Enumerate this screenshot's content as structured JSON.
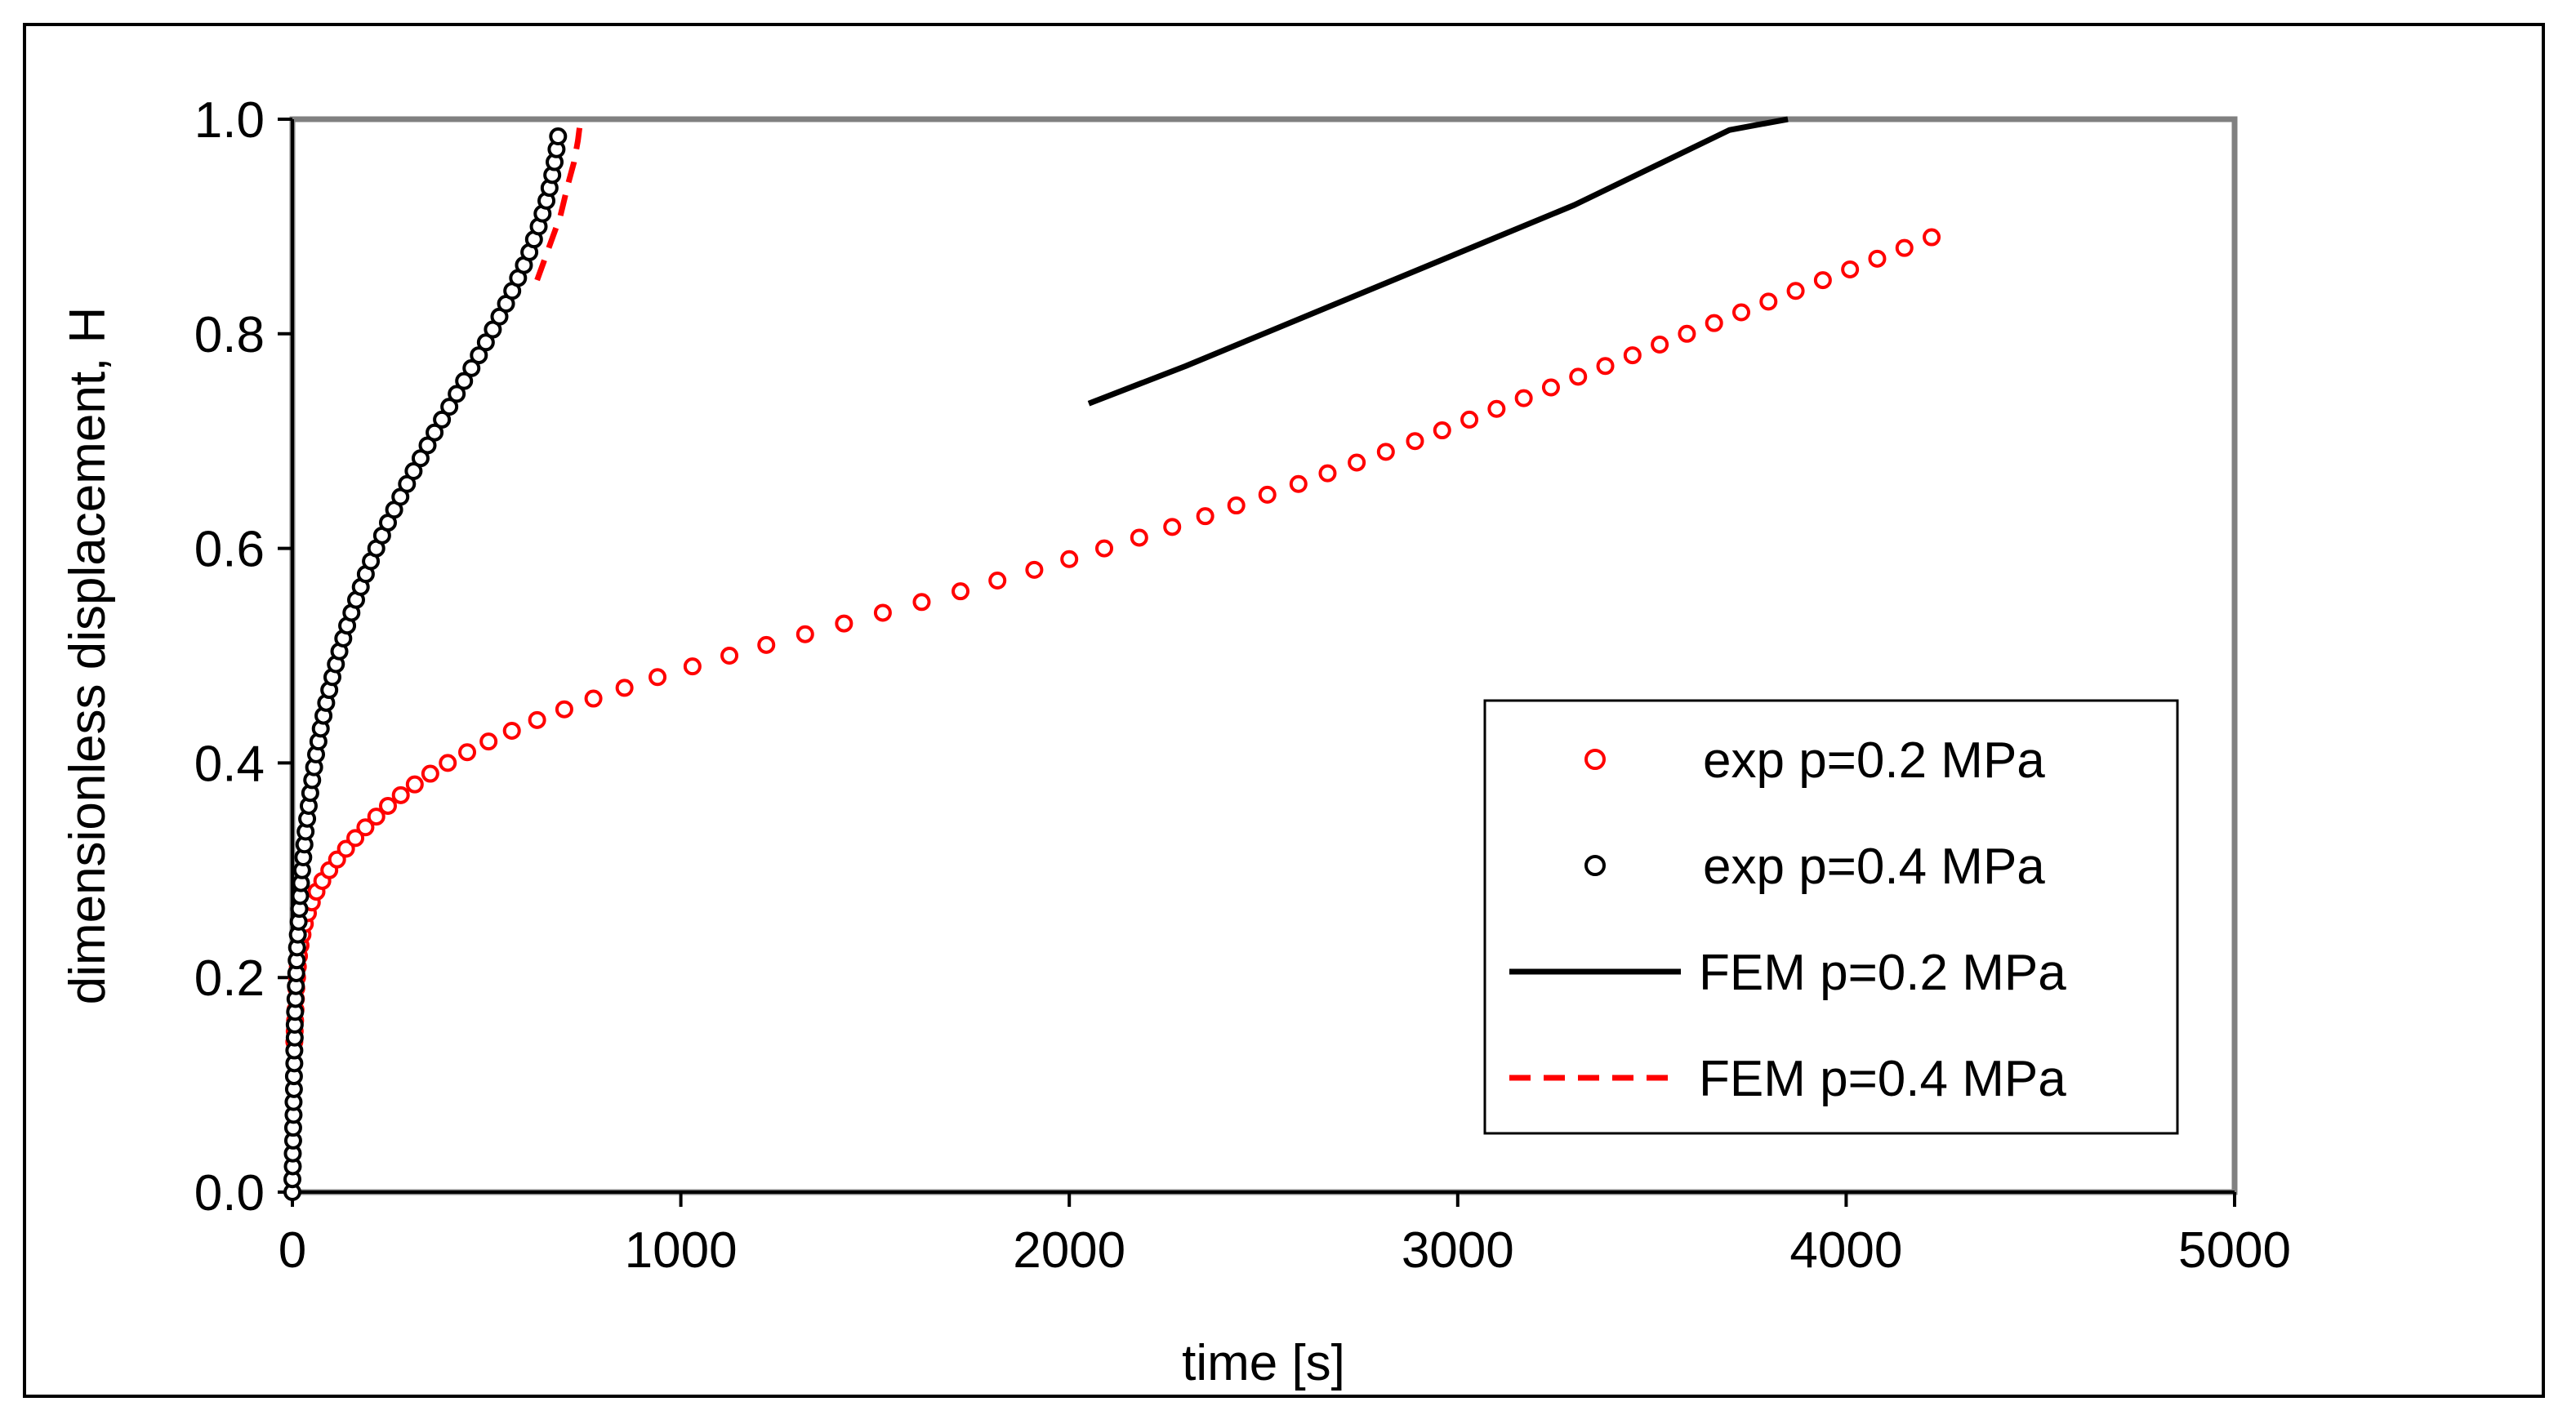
{
  "chart_data": {
    "type": "scatter",
    "title": "",
    "xlabel": "time [s]",
    "ylabel": "dimensionless displacement, H",
    "xlim": [
      0,
      5000
    ],
    "ylim": [
      0,
      1
    ],
    "xticks": [
      {
        "value": 0,
        "label": "0"
      },
      {
        "value": 1000,
        "label": "1000"
      },
      {
        "value": 2000,
        "label": "2000"
      },
      {
        "value": 3000,
        "label": "3000"
      },
      {
        "value": 4000,
        "label": "4000"
      },
      {
        "value": 5000,
        "label": "5000"
      }
    ],
    "yticks": [
      {
        "value": 0,
        "label": "0.0"
      },
      {
        "value": 0.2,
        "label": "0.2"
      },
      {
        "value": 0.4,
        "label": "0.4"
      },
      {
        "value": 0.6,
        "label": "0.6"
      },
      {
        "value": 0.8,
        "label": "0.8"
      },
      {
        "value": 1.0,
        "label": "1.0"
      }
    ],
    "grid": false,
    "legend_position": "bottom-right",
    "series": [
      {
        "name": "exp p=0.2 MPa",
        "kind": "markers",
        "color": "#ff0000",
        "x": [
          5,
          6,
          7,
          8,
          9,
          10,
          12,
          14,
          17,
          21,
          26,
          32,
          40,
          50,
          62,
          77,
          95,
          115,
          138,
          162,
          188,
          216,
          246,
          279,
          315,
          355,
          400,
          450,
          505,
          565,
          630,
          700,
          775,
          855,
          940,
          1030,
          1125,
          1220,
          1320,
          1420,
          1520,
          1620,
          1720,
          1815,
          1910,
          2000,
          2090,
          2180,
          2265,
          2350,
          2430,
          2510,
          2590,
          2665,
          2740,
          2815,
          2890,
          2960,
          3030,
          3100,
          3170,
          3240,
          3310,
          3380,
          3450,
          3520,
          3590,
          3660,
          3730,
          3800,
          3870,
          3940,
          4010,
          4080,
          4150,
          4220
        ],
        "y": [
          0.14,
          0.15,
          0.16,
          0.17,
          0.18,
          0.19,
          0.2,
          0.21,
          0.22,
          0.23,
          0.24,
          0.25,
          0.26,
          0.27,
          0.28,
          0.29,
          0.3,
          0.31,
          0.32,
          0.33,
          0.34,
          0.35,
          0.36,
          0.37,
          0.38,
          0.39,
          0.4,
          0.41,
          0.42,
          0.43,
          0.44,
          0.45,
          0.46,
          0.47,
          0.48,
          0.49,
          0.5,
          0.51,
          0.52,
          0.53,
          0.54,
          0.55,
          0.56,
          0.57,
          0.58,
          0.59,
          0.6,
          0.61,
          0.62,
          0.63,
          0.64,
          0.65,
          0.66,
          0.67,
          0.68,
          0.69,
          0.7,
          0.71,
          0.72,
          0.73,
          0.74,
          0.75,
          0.76,
          0.77,
          0.78,
          0.79,
          0.8,
          0.81,
          0.82,
          0.83,
          0.84,
          0.85,
          0.86,
          0.87,
          0.88,
          0.89
        ]
      },
      {
        "name": "exp p=0.4 MPa",
        "kind": "markers",
        "color": "#000000",
        "x": [
          0,
          0,
          1,
          1,
          2,
          2,
          3,
          3,
          4,
          4,
          5,
          5,
          6,
          6,
          7,
          8,
          9,
          10,
          11,
          12,
          14,
          16,
          18,
          20,
          22,
          25,
          28,
          31,
          34,
          38,
          42,
          46,
          51,
          56,
          61,
          67,
          73,
          80,
          87,
          95,
          103,
          112,
          121,
          131,
          141,
          152,
          164,
          176,
          189,
          202,
          216,
          231,
          246,
          262,
          278,
          295,
          312,
          330,
          348,
          366,
          385,
          404,
          423,
          442,
          461,
          480,
          498,
          516,
          533,
          550,
          566,
          581,
          596,
          610,
          622,
          634,
          644,
          654,
          662,
          669,
          675,
          680,
          684
        ],
        "y": [
          0.0,
          0.012,
          0.024,
          0.036,
          0.048,
          0.06,
          0.072,
          0.084,
          0.096,
          0.108,
          0.12,
          0.132,
          0.144,
          0.156,
          0.168,
          0.18,
          0.192,
          0.204,
          0.216,
          0.228,
          0.24,
          0.252,
          0.264,
          0.276,
          0.288,
          0.3,
          0.312,
          0.324,
          0.336,
          0.348,
          0.36,
          0.372,
          0.384,
          0.396,
          0.408,
          0.42,
          0.432,
          0.444,
          0.456,
          0.468,
          0.48,
          0.492,
          0.504,
          0.516,
          0.528,
          0.54,
          0.552,
          0.564,
          0.576,
          0.588,
          0.6,
          0.612,
          0.624,
          0.636,
          0.648,
          0.66,
          0.672,
          0.684,
          0.696,
          0.708,
          0.72,
          0.732,
          0.744,
          0.756,
          0.768,
          0.78,
          0.792,
          0.804,
          0.816,
          0.828,
          0.84,
          0.852,
          0.864,
          0.876,
          0.888,
          0.9,
          0.912,
          0.924,
          0.936,
          0.948,
          0.96,
          0.972,
          0.984
        ]
      },
      {
        "name": "FEM p=0.2 MPa",
        "kind": "line",
        "style": "solid",
        "color": "#000000",
        "x": [
          2050,
          2300,
          2500,
          2700,
          2900,
          3100,
          3300,
          3500,
          3700,
          3850
        ],
        "y": [
          0.735,
          0.77,
          0.8,
          0.83,
          0.86,
          0.89,
          0.92,
          0.955,
          0.99,
          1.0
        ]
      },
      {
        "name": "FEM p=0.4 MPa",
        "kind": "line",
        "style": "dashed",
        "color": "#ff0000",
        "x": [
          630,
          660,
          690,
          710,
          725,
          735,
          742
        ],
        "y": [
          0.85,
          0.88,
          0.91,
          0.94,
          0.96,
          0.98,
          1.0
        ]
      }
    ]
  }
}
